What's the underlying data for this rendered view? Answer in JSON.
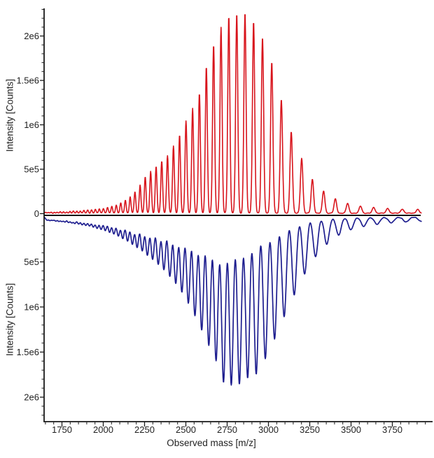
{
  "chart_data": {
    "type": "line",
    "title": "",
    "xlabel": "Observed mass [m/z]",
    "ylabel": "Intensity [Counts]",
    "legend": null,
    "grid": false,
    "axis_color": "#1a1a1a",
    "zero_line_color": "#111111",
    "series_domain": [
      1645,
      3926
    ],
    "x_axis": {
      "label": "Observed mass [m/z]",
      "major_ticks": [
        1750,
        2000,
        2250,
        2500,
        2750,
        3000,
        3250,
        3500,
        3750
      ],
      "minor_step": 50,
      "range": [
        1645,
        3995
      ]
    },
    "y_axis": {
      "label": "Intensity [Counts]",
      "tick_labels": [
        "0",
        "5e5",
        "1e6",
        "1.5e6",
        "2e6"
      ],
      "tick_values": [
        0,
        500000,
        1000000,
        1500000,
        2000000
      ],
      "minor_step": 100000,
      "panel_max": 2300000,
      "mirrored": true
    },
    "series": [
      {
        "name": "spectrum-up-red",
        "direction": "up",
        "color": "#d8141c",
        "stroke_width": 1.6,
        "peak_sigma_rel": 0.0023,
        "baseline_noise": 8000,
        "peaks": [
          [
            1650,
            8000
          ],
          [
            1668,
            9000
          ],
          [
            1685,
            10000
          ],
          [
            1703,
            11000
          ],
          [
            1721,
            12000
          ],
          [
            1740,
            13500
          ],
          [
            1759,
            15000
          ],
          [
            1779,
            17000
          ],
          [
            1799,
            19000
          ],
          [
            1819,
            22000
          ],
          [
            1840,
            24500
          ],
          [
            1861,
            27000
          ],
          [
            1883,
            30000
          ],
          [
            1906,
            34000
          ],
          [
            1929,
            38000
          ],
          [
            1952,
            43000
          ],
          [
            1976,
            49000
          ],
          [
            2001,
            56000
          ],
          [
            2026,
            65000
          ],
          [
            2052,
            77000
          ],
          [
            2079,
            93000
          ],
          [
            2106,
            115000
          ],
          [
            2134,
            145000
          ],
          [
            2163,
            185000
          ],
          [
            2192,
            240000
          ],
          [
            2223,
            320000
          ],
          [
            2254,
            410000
          ],
          [
            2287,
            470000
          ],
          [
            2320,
            525000
          ],
          [
            2354,
            585000
          ],
          [
            2389,
            650000
          ],
          [
            2425,
            755000
          ],
          [
            2462,
            880000
          ],
          [
            2501,
            1040000
          ],
          [
            2541,
            1180000
          ],
          [
            2582,
            1350000
          ],
          [
            2624,
            1650000
          ],
          [
            2668,
            1900000
          ],
          [
            2713,
            2090000
          ],
          [
            2760,
            2220000
          ],
          [
            2808,
            2250000
          ],
          [
            2858,
            2260000
          ],
          [
            2910,
            2160000
          ],
          [
            2964,
            1980000
          ],
          [
            3020,
            1700000
          ],
          [
            3078,
            1280000
          ],
          [
            3138,
            920000
          ],
          [
            3201,
            620000
          ],
          [
            3266,
            380000
          ],
          [
            3334,
            250000
          ],
          [
            3405,
            160000
          ],
          [
            3479,
            110000
          ],
          [
            3557,
            80000
          ],
          [
            3637,
            65000
          ],
          [
            3722,
            55000
          ],
          [
            3810,
            48000
          ],
          [
            3903,
            42000
          ]
        ]
      },
      {
        "name": "spectrum-down-blue",
        "direction": "down",
        "color": "#1e1e8f",
        "stroke_width": 1.7,
        "peak_sigma_rel": 0.0043,
        "baseline_noise": 8000,
        "peaks": [
          [
            1660,
            30000
          ],
          [
            1677,
            33000
          ],
          [
            1695,
            36000
          ],
          [
            1713,
            39000
          ],
          [
            1731,
            42000
          ],
          [
            1750,
            46000
          ],
          [
            1769,
            50000
          ],
          [
            1789,
            55000
          ],
          [
            1809,
            60000
          ],
          [
            1829,
            66000
          ],
          [
            1851,
            72000
          ],
          [
            1872,
            79000
          ],
          [
            1894,
            87000
          ],
          [
            1917,
            96000
          ],
          [
            1940,
            106000
          ],
          [
            1963,
            117000
          ],
          [
            1987,
            130000
          ],
          [
            2012,
            145000
          ],
          [
            2038,
            162000
          ],
          [
            2064,
            182000
          ],
          [
            2091,
            205000
          ],
          [
            2118,
            232000
          ],
          [
            2147,
            262000
          ],
          [
            2176,
            295000
          ],
          [
            2205,
            330000
          ],
          [
            2236,
            370000
          ],
          [
            2267,
            415000
          ],
          [
            2299,
            465000
          ],
          [
            2333,
            520000
          ],
          [
            2367,
            580000
          ],
          [
            2403,
            650000
          ],
          [
            2439,
            730000
          ],
          [
            2476,
            830000
          ],
          [
            2515,
            950000
          ],
          [
            2555,
            1090000
          ],
          [
            2596,
            1250000
          ],
          [
            2639,
            1420000
          ],
          [
            2683,
            1590000
          ],
          [
            2728,
            1830000
          ],
          [
            2775,
            1860000
          ],
          [
            2824,
            1850000
          ],
          [
            2874,
            1780000
          ],
          [
            2926,
            1740000
          ],
          [
            2981,
            1570000
          ],
          [
            3037,
            1350000
          ],
          [
            3095,
            1100000
          ],
          [
            3156,
            860000
          ],
          [
            3219,
            630000
          ],
          [
            3285,
            440000
          ],
          [
            3353,
            300000
          ],
          [
            3425,
            200000
          ],
          [
            3499,
            140000
          ],
          [
            3577,
            103000
          ],
          [
            3658,
            80000
          ],
          [
            3743,
            63000
          ],
          [
            3832,
            52000
          ],
          [
            3925,
            45000
          ]
        ]
      }
    ]
  }
}
